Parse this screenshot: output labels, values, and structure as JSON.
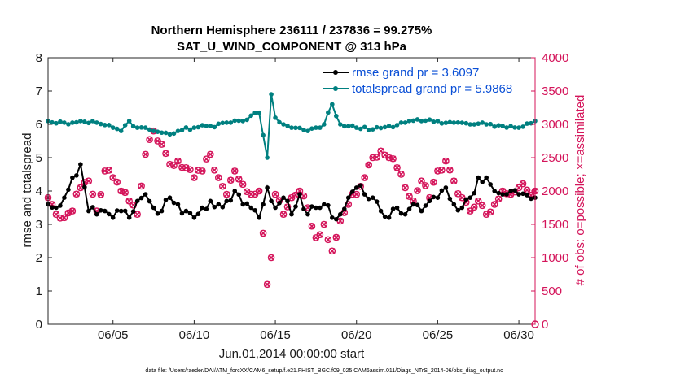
{
  "chart_data": {
    "type": "line",
    "title": "Northern Hemisphere 236111 / 237836 = 99.275%",
    "subtitle": "SAT_U_WIND_COMPONENT @ 313 hPa",
    "xlabel": "Jun.01,2014 00:00:00 start",
    "ylabel": "rmse and totalspread",
    "ylabel_right": "# of obs: o=possible; ×=assimilated",
    "xlim": [
      1,
      31
    ],
    "ylim": [
      0,
      8
    ],
    "ylim_right": [
      0,
      4000
    ],
    "x_ticks": [
      5,
      10,
      15,
      20,
      25,
      30
    ],
    "x_tick_labels": [
      "06/05",
      "06/10",
      "06/15",
      "06/20",
      "06/25",
      "06/30"
    ],
    "y_ticks": [
      0,
      1,
      2,
      3,
      4,
      5,
      6,
      7,
      8
    ],
    "y_tick_labels": [
      "0",
      "1",
      "2",
      "3",
      "4",
      "5",
      "6",
      "7",
      "8"
    ],
    "y_ticks_right": [
      0,
      500,
      1000,
      1500,
      2000,
      2500,
      3000,
      3500,
      4000
    ],
    "y_tick_labels_right": [
      "0",
      "500",
      "1000",
      "1500",
      "2000",
      "2500",
      "3000",
      "3500",
      "4000"
    ],
    "legend": [
      {
        "label": "rmse grand pr = 3.6097",
        "color": "#000000"
      },
      {
        "label": "totalspread grand pr = 5.9868",
        "color": "#008080"
      }
    ],
    "legend_position": "top-right",
    "series": [
      {
        "name": "rmse",
        "color": "#000000",
        "axis": "left",
        "keys": [
          [
            1,
            3.6
          ],
          [
            1.5,
            3.5
          ],
          [
            2,
            3.8
          ],
          [
            2.5,
            4.4
          ],
          [
            3,
            4.8
          ],
          [
            3.5,
            3.4
          ],
          [
            4,
            3.3
          ],
          [
            4.5,
            3.4
          ],
          [
            5,
            3.2
          ],
          [
            5.5,
            3.4
          ],
          [
            6,
            3.2
          ],
          [
            6.5,
            3.7
          ],
          [
            7,
            3.9
          ],
          [
            7.5,
            3.5
          ],
          [
            8,
            3.4
          ],
          [
            8.5,
            3.8
          ],
          [
            9,
            3.6
          ],
          [
            9.5,
            3.4
          ],
          [
            10,
            3.2
          ],
          [
            10.5,
            3.5
          ],
          [
            11,
            3.7
          ],
          [
            11.5,
            3.6
          ],
          [
            12,
            3.7
          ],
          [
            12.5,
            4.0
          ],
          [
            13,
            3.6
          ],
          [
            13.5,
            3.5
          ],
          [
            14,
            3.2
          ],
          [
            14.5,
            4.1
          ],
          [
            15,
            3.5
          ],
          [
            15.5,
            3.8
          ],
          [
            16,
            3.3
          ],
          [
            16.5,
            3.9
          ],
          [
            17,
            3.3
          ],
          [
            17.5,
            3.5
          ],
          [
            18,
            3.6
          ],
          [
            18.5,
            3.2
          ],
          [
            19,
            3.3
          ],
          [
            19.5,
            3.8
          ],
          [
            20,
            4.1
          ],
          [
            20.5,
            3.9
          ],
          [
            21,
            3.8
          ],
          [
            21.5,
            3.4
          ],
          [
            22,
            3.2
          ],
          [
            22.5,
            3.5
          ],
          [
            23,
            3.3
          ],
          [
            23.5,
            3.6
          ],
          [
            24,
            3.4
          ],
          [
            24.5,
            3.7
          ],
          [
            25,
            3.8
          ],
          [
            25.5,
            4.1
          ],
          [
            26,
            3.6
          ],
          [
            26.5,
            3.5
          ],
          [
            27,
            3.8
          ],
          [
            27.5,
            4.4
          ],
          [
            28,
            4.4
          ],
          [
            28.5,
            4.0
          ],
          [
            29,
            3.9
          ],
          [
            29.5,
            4.0
          ],
          [
            30,
            3.9
          ],
          [
            31,
            3.8
          ]
        ]
      },
      {
        "name": "totalspread",
        "color": "#008080",
        "axis": "left",
        "keys": [
          [
            1,
            6.1
          ],
          [
            2,
            6.05
          ],
          [
            3,
            6.1
          ],
          [
            4,
            6.05
          ],
          [
            5,
            5.9
          ],
          [
            5.5,
            5.8
          ],
          [
            6,
            6.1
          ],
          [
            6.5,
            5.9
          ],
          [
            7,
            5.9
          ],
          [
            7.5,
            5.8
          ],
          [
            8,
            5.75
          ],
          [
            8.5,
            5.7
          ],
          [
            9,
            5.8
          ],
          [
            10,
            5.9
          ],
          [
            11,
            5.95
          ],
          [
            12,
            6.05
          ],
          [
            13,
            6.1
          ],
          [
            14,
            6.35
          ],
          [
            14.5,
            5.0
          ],
          [
            14.75,
            6.9
          ],
          [
            15,
            6.2
          ],
          [
            15.5,
            6.0
          ],
          [
            16,
            5.9
          ],
          [
            17,
            5.8
          ],
          [
            17.5,
            5.9
          ],
          [
            18,
            6.0
          ],
          [
            18.5,
            6.6
          ],
          [
            19,
            6.0
          ],
          [
            20,
            5.9
          ],
          [
            21,
            5.85
          ],
          [
            22,
            5.95
          ],
          [
            23,
            6.05
          ],
          [
            24,
            6.1
          ],
          [
            25,
            6.1
          ],
          [
            26,
            6.05
          ],
          [
            27,
            6.0
          ],
          [
            28,
            6.0
          ],
          [
            29,
            5.95
          ],
          [
            30,
            5.9
          ],
          [
            31,
            6.1
          ]
        ]
      },
      {
        "name": "obs_possible_assimilated",
        "color": "#d4145a",
        "axis": "right",
        "keys": [
          [
            1,
            1900
          ],
          [
            1.5,
            1650
          ],
          [
            2,
            1600
          ],
          [
            2.5,
            1700
          ],
          [
            3,
            2050
          ],
          [
            3.5,
            2150
          ],
          [
            4,
            1700
          ],
          [
            4.5,
            2300
          ],
          [
            5,
            2200
          ],
          [
            5.5,
            2000
          ],
          [
            6,
            1850
          ],
          [
            6.5,
            1650
          ],
          [
            7,
            2550
          ],
          [
            7.5,
            2900
          ],
          [
            8,
            2700
          ],
          [
            8.5,
            2400
          ],
          [
            9,
            2450
          ],
          [
            9.5,
            2350
          ],
          [
            10,
            2200
          ],
          [
            10.5,
            2300
          ],
          [
            11,
            2550
          ],
          [
            11.5,
            2200
          ],
          [
            12,
            1950
          ],
          [
            12.5,
            2300
          ],
          [
            13,
            2100
          ],
          [
            13.5,
            1950
          ],
          [
            14,
            2000
          ],
          [
            14.5,
            600
          ],
          [
            14.75,
            1000
          ],
          [
            15,
            1950
          ],
          [
            15.5,
            1650
          ],
          [
            16,
            1900
          ],
          [
            16.5,
            2000
          ],
          [
            17,
            1750
          ],
          [
            17.5,
            1300
          ],
          [
            18,
            1500
          ],
          [
            18.5,
            1100
          ],
          [
            19,
            1550
          ],
          [
            19.5,
            1800
          ],
          [
            20,
            1950
          ],
          [
            20.5,
            2200
          ],
          [
            21,
            2500
          ],
          [
            21.5,
            2600
          ],
          [
            22,
            2500
          ],
          [
            22.5,
            2350
          ],
          [
            23,
            2050
          ],
          [
            23.5,
            1850
          ],
          [
            24,
            2150
          ],
          [
            24.5,
            1900
          ],
          [
            25,
            2300
          ],
          [
            25.5,
            2450
          ],
          [
            26,
            2150
          ],
          [
            26.5,
            1900
          ],
          [
            27,
            1700
          ],
          [
            27.5,
            1850
          ],
          [
            28,
            1650
          ],
          [
            28.5,
            1800
          ],
          [
            29,
            2000
          ],
          [
            29.5,
            1950
          ],
          [
            30,
            2050
          ],
          [
            31,
            2000
          ]
        ]
      }
    ]
  },
  "footnote": "data file: /Users/raeder/DAI/ATM_forcXX/CAM6_setup/f.e21.FHIST_BGC.f09_025.CAM6assim.011/Diags_NTrS_2014-06/obs_diag_output.nc",
  "colors": {
    "rmse": "#000000",
    "totalspread": "#008080",
    "obs": "#d4145a",
    "legend_text": "#0a4fd6"
  }
}
